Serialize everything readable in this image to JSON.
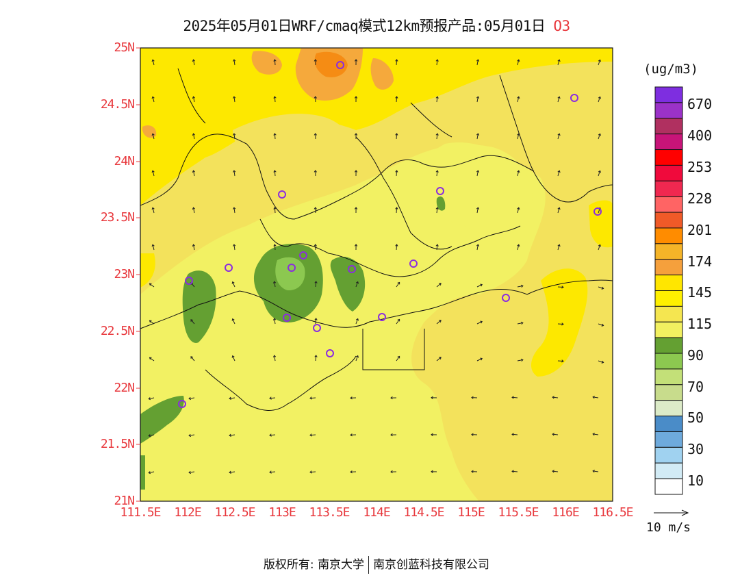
{
  "title": {
    "main": "2025年05月01日WRF/cmaq模式12km预报产品:05月01日",
    "variable": "O3"
  },
  "map": {
    "lat_ticks": [
      "25N",
      "24.5N",
      "24N",
      "23.5N",
      "23N",
      "22.5N",
      "22N",
      "21.5N",
      "21N"
    ],
    "lon_ticks": [
      "111.5E",
      "112E",
      "112.5E",
      "113E",
      "113.5E",
      "114E",
      "114.5E",
      "115E",
      "115.5E",
      "116E",
      "116.5E"
    ],
    "lat_range": [
      21,
      25
    ],
    "lon_range": [
      111.5,
      116.5
    ]
  },
  "legend": {
    "unit": "(ug/m3)",
    "labels": [
      "670",
      "400",
      "253",
      "228",
      "201",
      "174",
      "145",
      "115",
      "90",
      "70",
      "50",
      "30",
      "10"
    ],
    "colors": [
      "#7e2ee0",
      "#9b32c8",
      "#b03060",
      "#c81478",
      "#ff0000",
      "#f00a3c",
      "#f02850",
      "#ff6464",
      "#f05a28",
      "#ff8c00",
      "#f5b428",
      "#f5a03c",
      "#ffe600",
      "#fff000",
      "#f5e650",
      "#f2f060",
      "#64a032",
      "#8cc850",
      "#c3e078",
      "#c8dc8c",
      "#dcebc8",
      "#4a8cc8",
      "#6eaadc",
      "#a0d2f0",
      "#d2ebf5",
      "#ffffff"
    ],
    "vector_reference": "10 m/s"
  },
  "footer": {
    "owner_prefix": "版权所有:",
    "org1": "南京大学",
    "org2": "南京创蓝科技有限公司"
  },
  "colors": {
    "label_red": "#e8383d",
    "station_marker": "#8b2ce0"
  }
}
